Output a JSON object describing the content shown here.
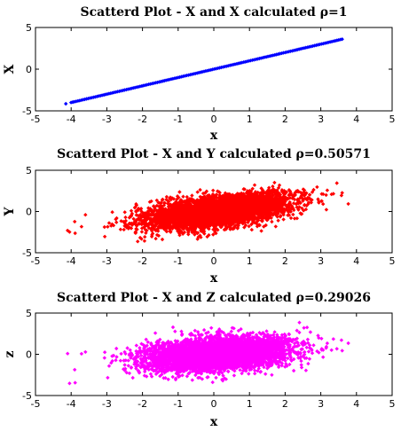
{
  "chart_data": [
    {
      "type": "scatter",
      "title": "Scatterd Plot - X and X calculated ρ=1",
      "xlabel": "x",
      "ylabel": "X",
      "xlim": [
        -5,
        5
      ],
      "ylim": [
        -5,
        5
      ],
      "xticks": [
        "-5",
        "-4",
        "-3",
        "-2",
        "-1",
        "0",
        "1",
        "2",
        "3",
        "4",
        "5"
      ],
      "yticks": [
        "5",
        "0",
        "-5"
      ],
      "marker_color": "#0000ff",
      "correlation": 1,
      "x_range_of_points": [
        -4.1,
        3.6
      ],
      "spread_y": 0.0
    },
    {
      "type": "scatter",
      "title": "Scatterd Plot - X and Y calculated ρ=0.50571",
      "xlabel": "x",
      "ylabel": "Y",
      "xlim": [
        -5,
        5
      ],
      "ylim": [
        -5,
        5
      ],
      "xticks": [
        "-5",
        "-4",
        "-3",
        "-2",
        "-1",
        "0",
        "1",
        "2",
        "3",
        "4",
        "5"
      ],
      "yticks": [
        "5",
        "0",
        "-5"
      ],
      "marker_color": "#ff0000",
      "correlation": 0.50571,
      "x_range_of_points": [
        -4.1,
        3.6
      ],
      "spread_y": 1.0
    },
    {
      "type": "scatter",
      "title": "Scatterd Plot - X and Z calculated ρ=0.29026",
      "xlabel": "x",
      "ylabel": "z",
      "xlim": [
        -5,
        5
      ],
      "ylim": [
        -5,
        5
      ],
      "xticks": [
        "-5",
        "-4",
        "-3",
        "-2",
        "-1",
        "0",
        "1",
        "2",
        "3",
        "4",
        "5"
      ],
      "yticks": [
        "5",
        "0",
        "-5"
      ],
      "marker_color": "#ff00ff",
      "correlation": 0.29026,
      "x_range_of_points": [
        -4.1,
        3.6
      ],
      "spread_y": 1.0
    }
  ]
}
